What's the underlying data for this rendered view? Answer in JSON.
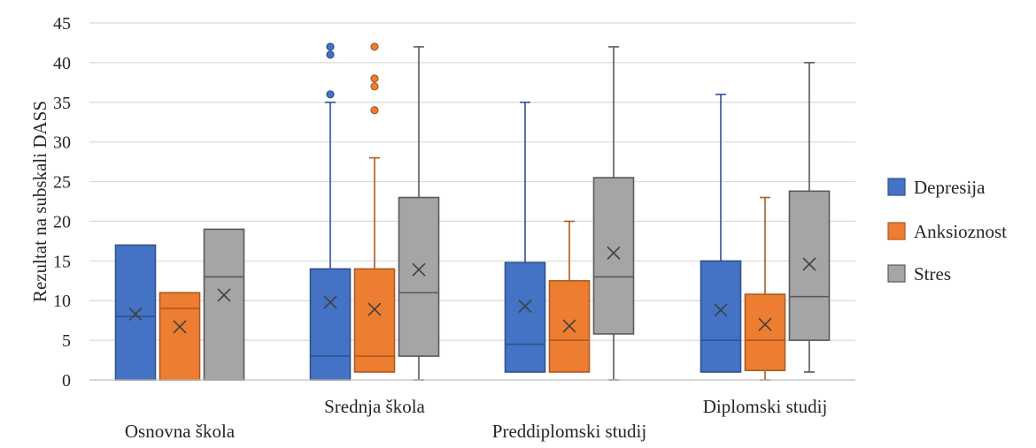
{
  "chart_data": {
    "type": "box",
    "title": "",
    "ylabel": "Rezultat na subskali DASS",
    "xlabel": "",
    "ylim": [
      0,
      45
    ],
    "yticks": [
      0,
      5,
      10,
      15,
      20,
      25,
      30,
      35,
      40,
      45
    ],
    "grid": true,
    "legend_position": "right",
    "categories": [
      "Osnovna škola",
      "Srednja škola",
      "Preddiplomski studij",
      "Diplomski studij"
    ],
    "series": [
      {
        "name": "Depresija",
        "color": "#4472c4",
        "border": "#2f528f",
        "boxes": [
          {
            "min": 0,
            "q1": 0,
            "median": 8,
            "q3": 17,
            "max": 17,
            "mean": 8.3,
            "outliers": []
          },
          {
            "min": 0,
            "q1": 0,
            "median": 3,
            "q3": 14,
            "max": 35,
            "mean": 9.8,
            "outliers": [
              36,
              41,
              42
            ]
          },
          {
            "min": 1,
            "q1": 1,
            "median": 4.5,
            "q3": 14.8,
            "max": 35,
            "mean": 9.3,
            "outliers": []
          },
          {
            "min": 1,
            "q1": 1,
            "median": 5,
            "q3": 15,
            "max": 36,
            "mean": 8.8,
            "outliers": []
          }
        ]
      },
      {
        "name": "Anksioznost",
        "color": "#ed7d31",
        "border": "#ae5a21",
        "boxes": [
          {
            "min": 0,
            "q1": 0,
            "median": 9,
            "q3": 11,
            "max": 11,
            "mean": 6.7,
            "outliers": []
          },
          {
            "min": 1,
            "q1": 1,
            "median": 3,
            "q3": 14,
            "max": 28,
            "mean": 8.9,
            "outliers": [
              34,
              37,
              38,
              42
            ]
          },
          {
            "min": 1,
            "q1": 1,
            "median": 5,
            "q3": 12.5,
            "max": 20,
            "mean": 6.8,
            "outliers": []
          },
          {
            "min": 0,
            "q1": 1.2,
            "median": 5,
            "q3": 10.8,
            "max": 23,
            "mean": 7.0,
            "outliers": []
          }
        ]
      },
      {
        "name": "Stres",
        "color": "#a5a5a5",
        "border": "#595959",
        "boxes": [
          {
            "min": 0,
            "q1": 0,
            "median": 13,
            "q3": 19,
            "max": 19,
            "mean": 10.7,
            "outliers": []
          },
          {
            "min": 0,
            "q1": 3,
            "median": 11,
            "q3": 23,
            "max": 42,
            "mean": 13.9,
            "outliers": []
          },
          {
            "min": 0,
            "q1": 5.8,
            "median": 13,
            "q3": 25.5,
            "max": 42,
            "mean": 16.0,
            "outliers": []
          },
          {
            "min": 1,
            "q1": 5,
            "median": 10.5,
            "q3": 23.8,
            "max": 40,
            "mean": 14.6,
            "outliers": []
          }
        ]
      }
    ]
  }
}
